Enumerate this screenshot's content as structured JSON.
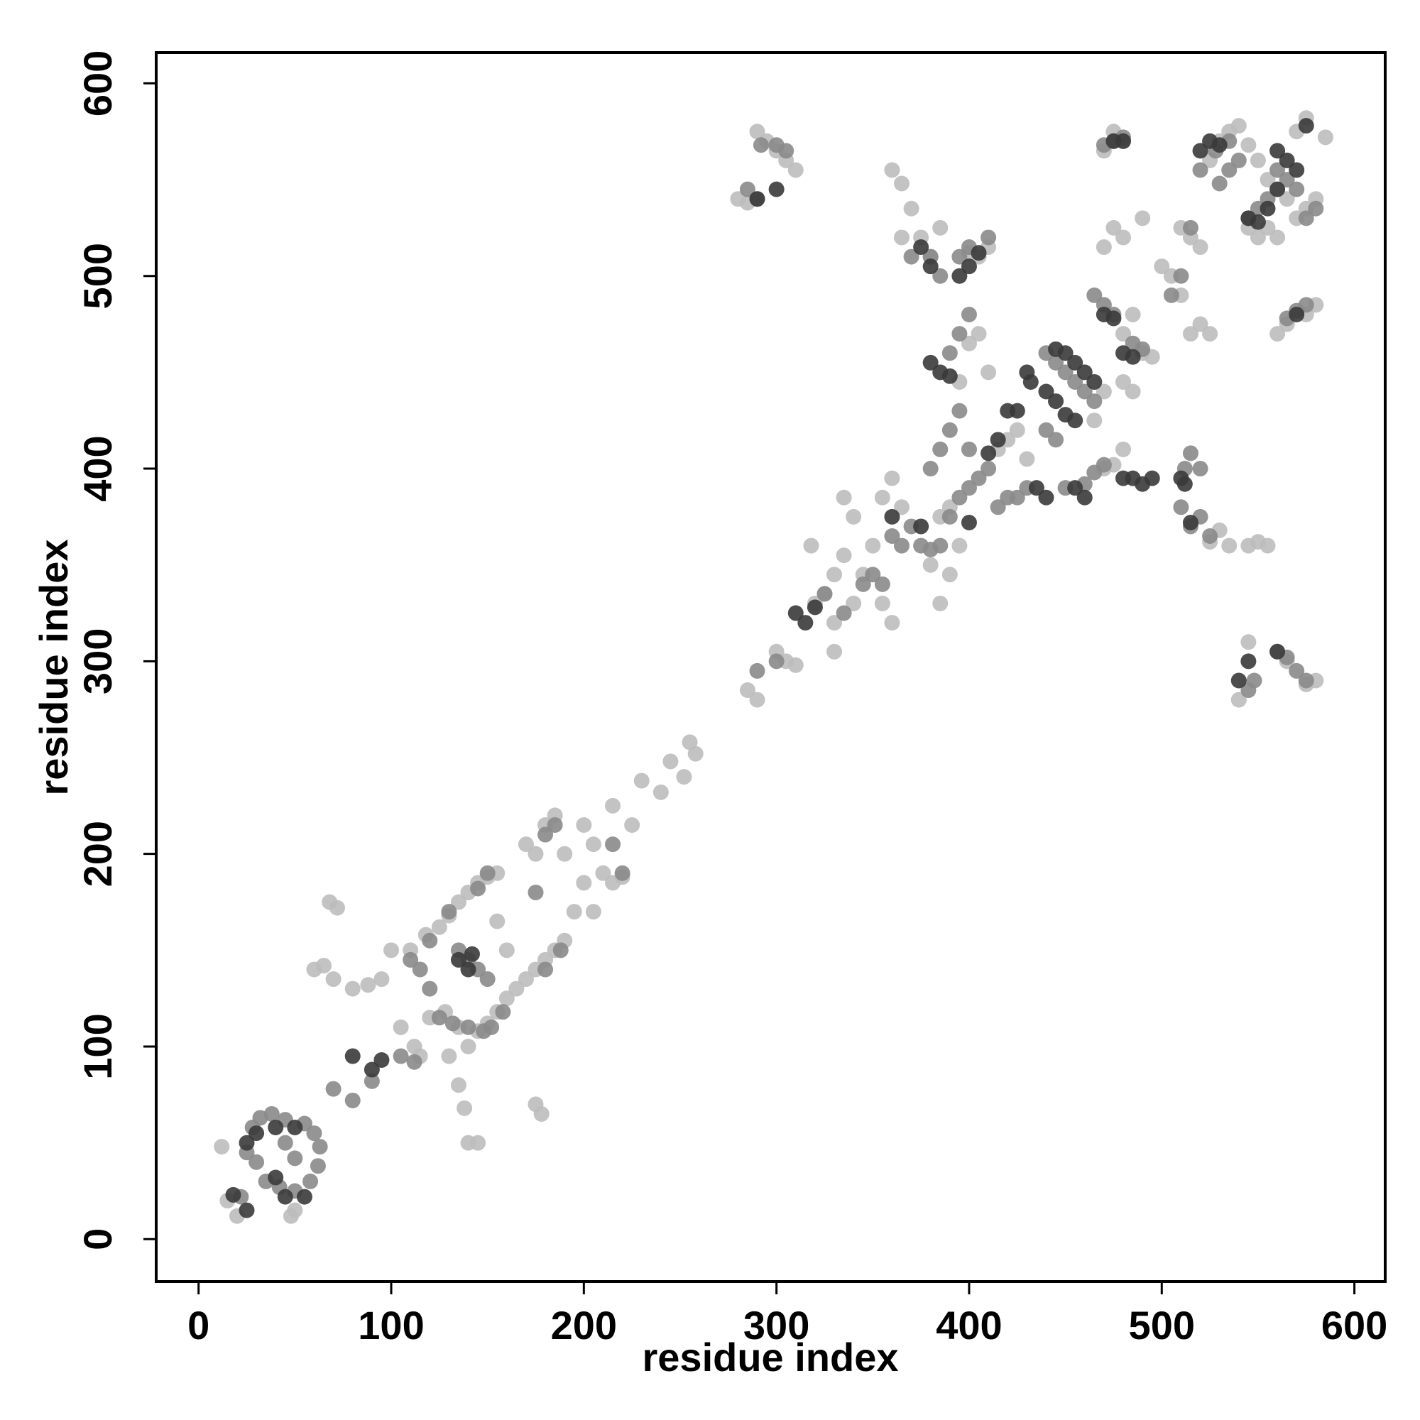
{
  "chart_data": {
    "type": "scatter",
    "xlabel": "residue index",
    "ylabel": "residue index",
    "xlim": [
      -22,
      616
    ],
    "ylim": [
      -22,
      616
    ],
    "xticks": [
      0,
      100,
      200,
      300,
      400,
      500,
      600
    ],
    "yticks": [
      0,
      100,
      200,
      300,
      400,
      500,
      600
    ],
    "grid": false,
    "series": [
      {
        "color": "#bdbdbd",
        "x": [
          12,
          15,
          20,
          48,
          50,
          60,
          65,
          70,
          68,
          72,
          80,
          88,
          95,
          100,
          110,
          118,
          125,
          130,
          135,
          140,
          145,
          150,
          155,
          105,
          112,
          115,
          120,
          128,
          135,
          140,
          145,
          150,
          155,
          160,
          165,
          170,
          175,
          180,
          185,
          190,
          130,
          135,
          138,
          140,
          145,
          175,
          178,
          155,
          160,
          170,
          175,
          180,
          185,
          190,
          200,
          205,
          210,
          215,
          220,
          200,
          195,
          205,
          215,
          225,
          230,
          240,
          245,
          252,
          258,
          255,
          285,
          290,
          300,
          305,
          310,
          318,
          325,
          330,
          335,
          340,
          345,
          350,
          355,
          360,
          330,
          335,
          340,
          355,
          360,
          365,
          380,
          385,
          390,
          395,
          385,
          390,
          365,
          370,
          375,
          380,
          385,
          400,
          405,
          395,
          410,
          420,
          415,
          425,
          430,
          470,
          475,
          480,
          465,
          470,
          480,
          485,
          480,
          485,
          490,
          495,
          470,
          475,
          480,
          490,
          500,
          505,
          510,
          515,
          520,
          525,
          510,
          515,
          520,
          525,
          530,
          535,
          540,
          545,
          550,
          555,
          560,
          565,
          570,
          575,
          580,
          555,
          550,
          545,
          560,
          570,
          575,
          585,
          560,
          565,
          575,
          580,
          545,
          550,
          555,
          545,
          540,
          560,
          565,
          575,
          580,
          525,
          530,
          535,
          290,
          295,
          300,
          305,
          310,
          280,
          285,
          330,
          320,
          475,
          470,
          480,
          365,
          360,
          410,
          405,
          400
        ],
        "values": [
          48,
          20,
          12,
          12,
          15,
          140,
          142,
          135,
          175,
          172,
          130,
          132,
          135,
          150,
          150,
          158,
          162,
          168,
          175,
          180,
          185,
          188,
          190,
          110,
          100,
          95,
          115,
          118,
          110,
          100,
          108,
          112,
          118,
          125,
          130,
          135,
          140,
          145,
          150,
          155,
          95,
          80,
          68,
          50,
          50,
          70,
          65,
          165,
          150,
          205,
          200,
          215,
          220,
          200,
          215,
          205,
          190,
          185,
          188,
          185,
          170,
          170,
          225,
          215,
          238,
          232,
          248,
          240,
          252,
          258,
          285,
          280,
          305,
          300,
          298,
          360,
          335,
          345,
          355,
          330,
          345,
          360,
          330,
          320,
          320,
          385,
          375,
          385,
          395,
          380,
          350,
          330,
          345,
          360,
          375,
          380,
          548,
          535,
          520,
          510,
          525,
          465,
          470,
          445,
          450,
          415,
          410,
          420,
          405,
          400,
          402,
          410,
          425,
          440,
          445,
          440,
          470,
          480,
          460,
          458,
          515,
          525,
          520,
          530,
          505,
          500,
          490,
          470,
          475,
          470,
          525,
          520,
          515,
          560,
          570,
          575,
          578,
          568,
          560,
          550,
          545,
          540,
          530,
          535,
          540,
          525,
          520,
          525,
          520,
          575,
          582,
          572,
          470,
          475,
          480,
          485,
          360,
          362,
          360,
          310,
          280,
          305,
          300,
          288,
          290,
          362,
          368,
          360,
          575,
          570,
          565,
          560,
          555,
          540,
          538,
          305,
          330,
          575,
          565,
          570,
          520,
          555,
          515,
          510,
          512
        ]
      },
      {
        "color": "#8a8a8a",
        "x": [
          25,
          28,
          32,
          38,
          45,
          55,
          60,
          63,
          62,
          58,
          50,
          42,
          35,
          30,
          45,
          50,
          22,
          70,
          80,
          90,
          105,
          112,
          110,
          120,
          130,
          145,
          150,
          115,
          120,
          125,
          132,
          140,
          148,
          152,
          158,
          180,
          188,
          135,
          140,
          145,
          150,
          180,
          185,
          175,
          215,
          220,
          300,
          290,
          325,
          335,
          345,
          350,
          355,
          360,
          365,
          370,
          375,
          380,
          385,
          390,
          395,
          400,
          405,
          410,
          415,
          420,
          425,
          430,
          380,
          385,
          390,
          395,
          400,
          440,
          445,
          450,
          455,
          460,
          465,
          440,
          445,
          450,
          460,
          465,
          470,
          390,
          395,
          400,
          385,
          380,
          370,
          395,
          400,
          410,
          465,
          470,
          475,
          485,
          490,
          510,
          515,
          520,
          512,
          515,
          520,
          525,
          530,
          535,
          540,
          545,
          550,
          555,
          560,
          565,
          570,
          575,
          580,
          520,
          528,
          535,
          565,
          570,
          575,
          548,
          545,
          565,
          570,
          575,
          290,
          285,
          292,
          300,
          305,
          470,
          475,
          480,
          505,
          510,
          515
        ],
        "values": [
          45,
          58,
          63,
          65,
          62,
          60,
          55,
          48,
          38,
          30,
          25,
          27,
          30,
          40,
          50,
          42,
          22,
          78,
          72,
          82,
          95,
          92,
          145,
          155,
          170,
          182,
          190,
          140,
          130,
          115,
          112,
          110,
          108,
          110,
          118,
          140,
          150,
          150,
          145,
          140,
          135,
          210,
          215,
          180,
          205,
          190,
          300,
          295,
          335,
          325,
          340,
          345,
          340,
          365,
          360,
          370,
          360,
          358,
          360,
          375,
          385,
          390,
          395,
          400,
          380,
          385,
          385,
          390,
          400,
          410,
          420,
          430,
          410,
          460,
          455,
          450,
          445,
          440,
          435,
          420,
          415,
          390,
          392,
          398,
          402,
          460,
          470,
          480,
          500,
          510,
          510,
          510,
          515,
          520,
          490,
          485,
          480,
          465,
          462,
          380,
          370,
          375,
          400,
          408,
          400,
          365,
          548,
          555,
          560,
          530,
          535,
          540,
          555,
          550,
          545,
          530,
          535,
          555,
          565,
          570,
          478,
          482,
          485,
          290,
          285,
          302,
          295,
          290,
          540,
          545,
          568,
          568,
          565,
          568,
          570,
          572,
          490,
          500,
          525
        ]
      },
      {
        "color": "#3a3a3a",
        "x": [
          25,
          30,
          40,
          50,
          55,
          45,
          40,
          18,
          25,
          80,
          90,
          95,
          140,
          142,
          135,
          310,
          315,
          320,
          360,
          375,
          400,
          410,
          415,
          420,
          425,
          430,
          432,
          440,
          445,
          450,
          455,
          445,
          450,
          455,
          460,
          465,
          435,
          440,
          480,
          485,
          490,
          495,
          510,
          512,
          515,
          380,
          385,
          390,
          395,
          400,
          405,
          375,
          380,
          455,
          460,
          470,
          475,
          480,
          485,
          520,
          525,
          530,
          545,
          550,
          555,
          560,
          565,
          570,
          560,
          575,
          290,
          540,
          560,
          570,
          300,
          545,
          475,
          480
        ],
        "values": [
          50,
          55,
          58,
          58,
          22,
          22,
          32,
          23,
          15,
          95,
          88,
          93,
          140,
          148,
          145,
          325,
          320,
          328,
          375,
          370,
          372,
          408,
          415,
          430,
          430,
          450,
          445,
          440,
          435,
          428,
          425,
          462,
          460,
          455,
          450,
          445,
          390,
          385,
          395,
          395,
          392,
          395,
          395,
          392,
          372,
          455,
          450,
          448,
          500,
          505,
          512,
          515,
          505,
          390,
          385,
          480,
          478,
          460,
          458,
          565,
          570,
          568,
          530,
          528,
          535,
          545,
          560,
          555,
          565,
          578,
          540,
          290,
          305,
          480,
          545,
          300,
          570,
          570
        ]
      }
    ]
  }
}
